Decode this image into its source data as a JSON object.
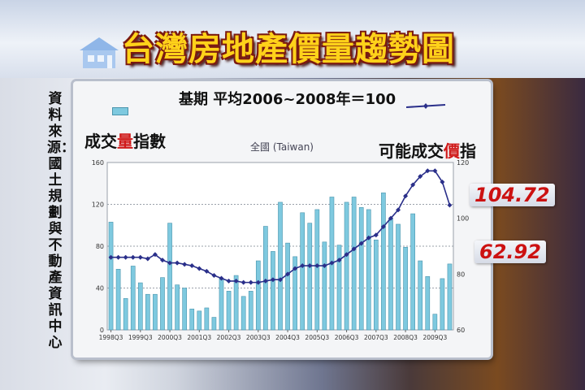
{
  "header": {
    "title": "台灣房地產價量趨勢圖"
  },
  "source_text": "資料來源：國土規劃與不動產資訊中心",
  "base_label": "基期  平均2006~2008年＝100",
  "left_label": {
    "pre": "成交",
    "hl": "量",
    "post": "指數"
  },
  "right_label": {
    "pre": "可能成交",
    "hl": "價",
    "post": "指數"
  },
  "region_label": "全國 (Taiwan)",
  "callouts": {
    "price": "104.72",
    "volume": "62.92"
  },
  "colors": {
    "bar": "#7ec9df",
    "line": "#2a2f8a",
    "highlight": "#d01a1a"
  },
  "chart_data": {
    "type": "bar+line",
    "x_tick_labels": [
      "1998Q3",
      "1999Q3",
      "2000Q3",
      "2001Q3",
      "2002Q3",
      "2003Q3",
      "2004Q3",
      "2005Q3",
      "2006Q3",
      "2007Q3",
      "2008Q3",
      "2009Q3"
    ],
    "yleft_ticks": [
      0,
      40,
      80,
      120,
      160
    ],
    "yright_ticks": [
      60,
      80,
      100,
      120
    ],
    "yleft_lim": [
      0,
      160
    ],
    "yright_lim": [
      60,
      120
    ],
    "grid": "horizontal dashed",
    "series": [
      {
        "axis": "left",
        "type": "bar",
        "values": [
          103,
          58,
          30,
          61,
          45,
          34,
          34,
          50,
          102,
          43,
          40,
          20,
          18,
          21,
          12,
          49,
          37,
          52,
          32,
          37,
          66,
          99,
          75,
          122,
          83,
          70,
          112,
          102,
          115,
          84,
          127,
          81,
          122,
          127,
          117,
          115,
          86,
          131,
          106,
          101,
          79,
          111,
          66,
          51,
          15,
          49,
          63
        ]
      },
      {
        "axis": "right",
        "type": "line",
        "values": [
          86,
          86,
          86,
          86,
          86,
          85.5,
          87,
          85,
          84,
          84,
          83.5,
          83,
          82,
          81,
          79.5,
          78.5,
          77.5,
          77.5,
          77,
          77,
          77,
          77.5,
          78,
          78,
          80,
          82,
          83,
          83,
          83,
          83,
          84,
          85,
          87,
          89,
          91,
          93,
          94,
          97,
          100,
          103,
          108,
          112,
          115,
          117,
          117,
          113,
          104.72
        ]
      }
    ]
  }
}
